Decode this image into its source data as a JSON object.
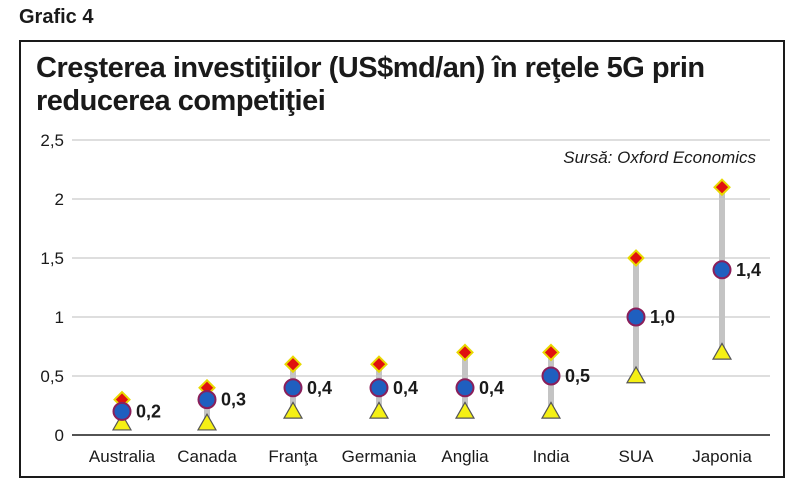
{
  "figure_label": "Grafic 4",
  "chart_data": {
    "type": "scatter",
    "title": "Creşterea investiţiilor (US$md/an) în reţele 5G prin reducerea competiţiei",
    "source": "Sursă: Oxford Economics",
    "categories": [
      "Australia",
      "Canada",
      "Franţa",
      "Germania",
      "Anglia",
      "India",
      "SUA",
      "Japonia"
    ],
    "series": [
      {
        "marker": "triangle",
        "color": "#f5f014",
        "values": [
          0.1,
          0.1,
          0.2,
          0.2,
          0.2,
          0.2,
          0.5,
          0.7
        ]
      },
      {
        "marker": "circle",
        "color": "#1f5fbf",
        "values": [
          0.2,
          0.3,
          0.4,
          0.4,
          0.4,
          0.5,
          1.0,
          1.4
        ]
      },
      {
        "marker": "diamond",
        "color": "#e0100f",
        "values": [
          0.3,
          0.4,
          0.6,
          0.6,
          0.7,
          0.7,
          1.5,
          2.1
        ]
      }
    ],
    "data_labels": [
      "0,2",
      "0,3",
      "0,4",
      "0,4",
      "0,4",
      "0,5",
      "1,0",
      "1,4"
    ],
    "ylim": [
      0,
      2.5
    ],
    "yticks": [
      0,
      0.5,
      1,
      1.5,
      2,
      2.5
    ],
    "ytick_labels": [
      "0",
      "0,5",
      "1",
      "1,5",
      "2",
      "2,5"
    ],
    "grid": true,
    "range_bar_color": "#c4c4c4"
  }
}
